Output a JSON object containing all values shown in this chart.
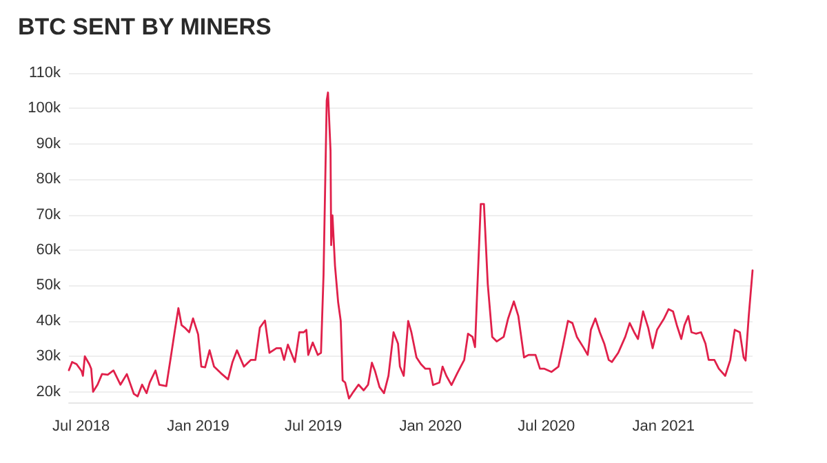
{
  "chart_data": {
    "type": "line",
    "title": "BTC SENT BY MINERS",
    "x": [
      "2018-06-12",
      "2018-06-17",
      "2018-06-24",
      "2018-07-02",
      "2018-07-04",
      "2018-07-07",
      "2018-07-14",
      "2018-07-17",
      "2018-07-20",
      "2018-07-27",
      "2018-08-03",
      "2018-08-12",
      "2018-08-21",
      "2018-09-01",
      "2018-09-11",
      "2018-09-22",
      "2018-09-28",
      "2018-10-05",
      "2018-10-12",
      "2018-10-17",
      "2018-10-26",
      "2018-11-01",
      "2018-11-12",
      "2018-11-19",
      "2018-11-25",
      "2018-12-01",
      "2018-12-06",
      "2018-12-11",
      "2018-12-18",
      "2018-12-24",
      "2019-01-01",
      "2019-01-06",
      "2019-01-12",
      "2019-01-19",
      "2019-01-26",
      "2019-02-06",
      "2019-02-17",
      "2019-02-24",
      "2019-03-03",
      "2019-03-14",
      "2019-03-25",
      "2019-04-01",
      "2019-04-08",
      "2019-04-16",
      "2019-04-23",
      "2019-05-04",
      "2019-05-11",
      "2019-05-16",
      "2019-05-22",
      "2019-06-02",
      "2019-06-09",
      "2019-06-16",
      "2019-06-20",
      "2019-06-23",
      "2019-06-30",
      "2019-07-08",
      "2019-07-13",
      "2019-07-17",
      "2019-07-22",
      "2019-07-24",
      "2019-07-28",
      "2019-07-29",
      "2019-07-31",
      "2019-08-04",
      "2019-08-09",
      "2019-08-13",
      "2019-08-16",
      "2019-08-20",
      "2019-08-26",
      "2019-09-02",
      "2019-09-10",
      "2019-09-18",
      "2019-09-25",
      "2019-10-01",
      "2019-10-06",
      "2019-10-13",
      "2019-10-20",
      "2019-10-27",
      "2019-11-04",
      "2019-11-11",
      "2019-11-14",
      "2019-11-20",
      "2019-11-27",
      "2019-12-02",
      "2019-12-10",
      "2019-12-17",
      "2019-12-24",
      "2019-12-31",
      "2020-01-05",
      "2020-01-15",
      "2020-01-20",
      "2020-01-26",
      "2020-02-03",
      "2020-02-12",
      "2020-02-23",
      "2020-02-29",
      "2020-03-07",
      "2020-03-11",
      "2020-03-14",
      "2020-03-20",
      "2020-03-25",
      "2020-03-31",
      "2020-04-07",
      "2020-04-14",
      "2020-04-25",
      "2020-05-02",
      "2020-05-11",
      "2020-05-18",
      "2020-05-27",
      "2020-06-03",
      "2020-06-14",
      "2020-06-21",
      "2020-06-28",
      "2020-07-09",
      "2020-07-20",
      "2020-07-27",
      "2020-08-04",
      "2020-08-11",
      "2020-08-18",
      "2020-08-29",
      "2020-09-04",
      "2020-09-09",
      "2020-09-16",
      "2020-09-23",
      "2020-09-30",
      "2020-10-07",
      "2020-10-12",
      "2020-10-22",
      "2020-11-02",
      "2020-11-09",
      "2020-11-16",
      "2020-11-22",
      "2020-11-30",
      "2020-12-08",
      "2020-12-15",
      "2020-12-22",
      "2021-01-02",
      "2021-01-09",
      "2021-01-16",
      "2021-01-22",
      "2021-01-29",
      "2021-02-03",
      "2021-02-09",
      "2021-02-14",
      "2021-02-21",
      "2021-03-01",
      "2021-03-08",
      "2021-03-13",
      "2021-03-22",
      "2021-03-29",
      "2021-04-08",
      "2021-04-16",
      "2021-04-23",
      "2021-05-01",
      "2021-05-07",
      "2021-05-10",
      "2021-05-15",
      "2021-05-21"
    ],
    "series": [
      {
        "color": "#e0204a",
        "values": [
          26100,
          28400,
          27800,
          25800,
          24500,
          30000,
          27800,
          26500,
          20000,
          22000,
          25000,
          24800,
          26000,
          22000,
          25000,
          19400,
          18700,
          22000,
          19600,
          22600,
          26000,
          22000,
          21600,
          29700,
          36800,
          43600,
          38800,
          38100,
          36800,
          40700,
          36200,
          27100,
          26900,
          31700,
          27100,
          25200,
          23500,
          28400,
          31700,
          27100,
          29000,
          29000,
          38100,
          40100,
          31000,
          32300,
          32300,
          29000,
          33300,
          28400,
          36800,
          36800,
          37500,
          30400,
          33900,
          30400,
          31000,
          53000,
          102200,
          104500,
          88000,
          61400,
          69800,
          55600,
          45200,
          40000,
          23200,
          22600,
          18100,
          20000,
          22000,
          20400,
          22000,
          28200,
          25800,
          21300,
          19600,
          24500,
          36800,
          33600,
          27100,
          24500,
          40000,
          36800,
          29700,
          27800,
          26500,
          26500,
          21900,
          22600,
          27100,
          24500,
          21900,
          25200,
          29000,
          36400,
          35500,
          32600,
          46500,
          73000,
          73000,
          50400,
          35500,
          34200,
          35500,
          40700,
          45500,
          41400,
          29700,
          30400,
          30400,
          26500,
          26500,
          25600,
          27100,
          32900,
          40000,
          39400,
          35500,
          32300,
          30400,
          37500,
          40700,
          36800,
          33600,
          29000,
          28400,
          31000,
          35500,
          39400,
          36800,
          34900,
          42700,
          38100,
          32300,
          37500,
          40700,
          43300,
          42700,
          38800,
          34900,
          38800,
          41400,
          36800,
          36400,
          36800,
          33600,
          29000,
          29000,
          26500,
          24500,
          29000,
          37500,
          36800,
          29700,
          28800,
          41400,
          54300
        ]
      }
    ],
    "xlim": [
      "2018-06-12",
      "2021-05-21"
    ],
    "xticks": [
      {
        "value": "2018-07-01",
        "label": "Jul 2018"
      },
      {
        "value": "2019-01-01",
        "label": "Jan 2019"
      },
      {
        "value": "2019-07-01",
        "label": "Jul 2019"
      },
      {
        "value": "2020-01-01",
        "label": "Jan 2020"
      },
      {
        "value": "2020-07-01",
        "label": "Jul 2020"
      },
      {
        "value": "2021-01-01",
        "label": "Jan 2021"
      }
    ],
    "ylim": [
      17000,
      110000
    ],
    "yticks": [
      {
        "value": 20000,
        "label": "20k"
      },
      {
        "value": 30000,
        "label": "30k"
      },
      {
        "value": 40000,
        "label": "40k"
      },
      {
        "value": 50000,
        "label": "50k"
      },
      {
        "value": 60000,
        "label": "60k"
      },
      {
        "value": 70000,
        "label": "70k"
      },
      {
        "value": 80000,
        "label": "80k"
      },
      {
        "value": 90000,
        "label": "90k"
      },
      {
        "value": 100000,
        "label": "100k"
      },
      {
        "value": 110000,
        "label": "110k"
      }
    ],
    "grid": "y",
    "marker": "none",
    "line_style": "solid"
  }
}
